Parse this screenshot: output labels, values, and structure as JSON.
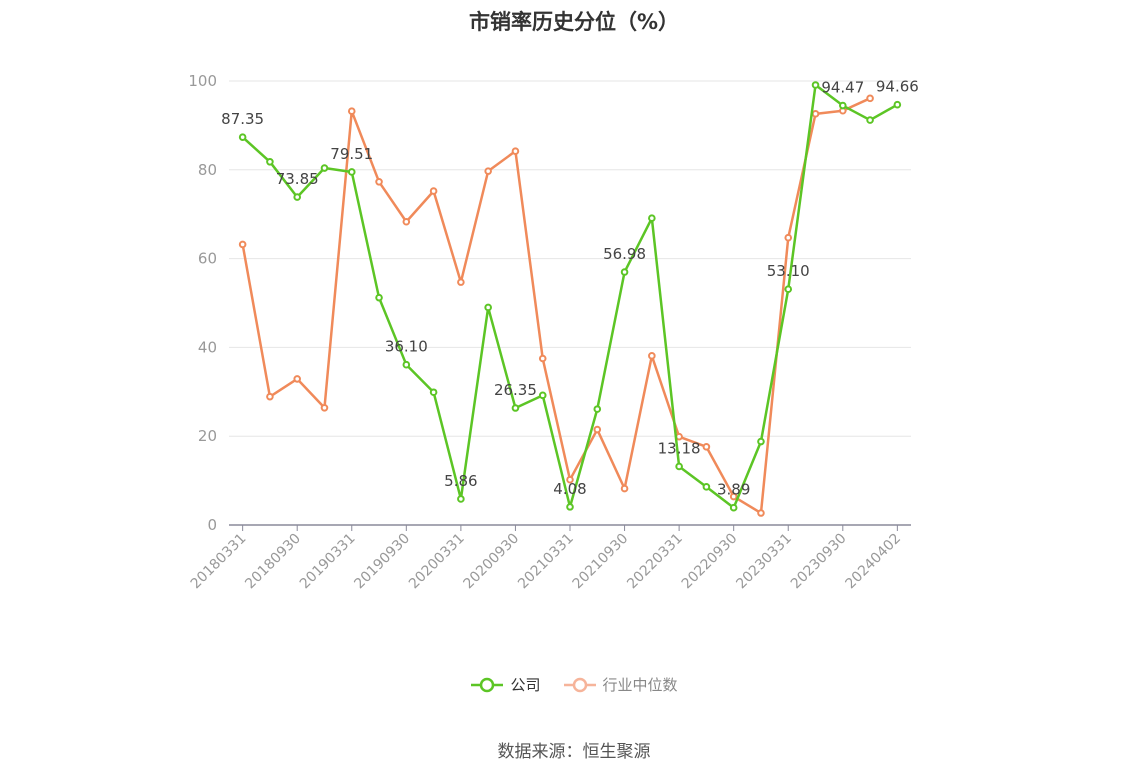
{
  "title": "市销率历史分位（%）",
  "source": "数据来源：恒生聚源",
  "colors": {
    "company": "#5cc525",
    "industry": "#f08a5a",
    "industry_legend": "#f6b49a",
    "grid": "#e6e6e6",
    "axis": "#8a8a9a"
  },
  "chart_data": {
    "type": "line",
    "x": [
      "20180331",
      "20180630",
      "20180930",
      "20181231",
      "20190331",
      "20190630",
      "20190930",
      "20191231",
      "20200331",
      "20200630",
      "20200930",
      "20201231",
      "20210331",
      "20210630",
      "20210930",
      "20211231",
      "20220331",
      "20220630",
      "20220930",
      "20221231",
      "20230331",
      "20230630",
      "20230930",
      "20231231",
      "20240402"
    ],
    "x_tick_labels": [
      "20180331",
      "20180930",
      "20190331",
      "20190930",
      "20200331",
      "20200930",
      "20210331",
      "20210930",
      "20220331",
      "20220930",
      "20230331",
      "20230930",
      "20240402"
    ],
    "y_ticks": [
      0,
      20,
      40,
      60,
      80,
      100
    ],
    "ylim": [
      0,
      100
    ],
    "grid": true,
    "legend_position": "bottom-center",
    "series": [
      {
        "name": "公司",
        "values": [
          87.35,
          81.8,
          73.85,
          80.4,
          79.51,
          51.2,
          36.1,
          29.9,
          5.86,
          49.0,
          26.35,
          29.2,
          4.08,
          26.1,
          56.98,
          69.1,
          13.18,
          8.6,
          3.89,
          18.8,
          53.1,
          99.1,
          94.47,
          91.2,
          94.66
        ],
        "labels": {
          "0": "87.35",
          "2": "73.85",
          "4": "79.51",
          "6": "36.10",
          "8": "5.86",
          "10": "26.35",
          "12": "4.08",
          "14": "56.98",
          "16": "13.18",
          "18": "3.89",
          "20": "53.10",
          "22": "94.47",
          "24": "94.66"
        }
      },
      {
        "name": "行业中位数",
        "values": [
          63.2,
          28.9,
          32.9,
          26.4,
          93.2,
          77.3,
          68.3,
          75.2,
          54.7,
          79.7,
          84.2,
          37.5,
          10.2,
          21.5,
          8.2,
          38.1,
          19.9,
          17.6,
          6.4,
          2.7,
          64.7,
          92.6,
          93.3,
          96.1,
          null
        ]
      }
    ]
  }
}
